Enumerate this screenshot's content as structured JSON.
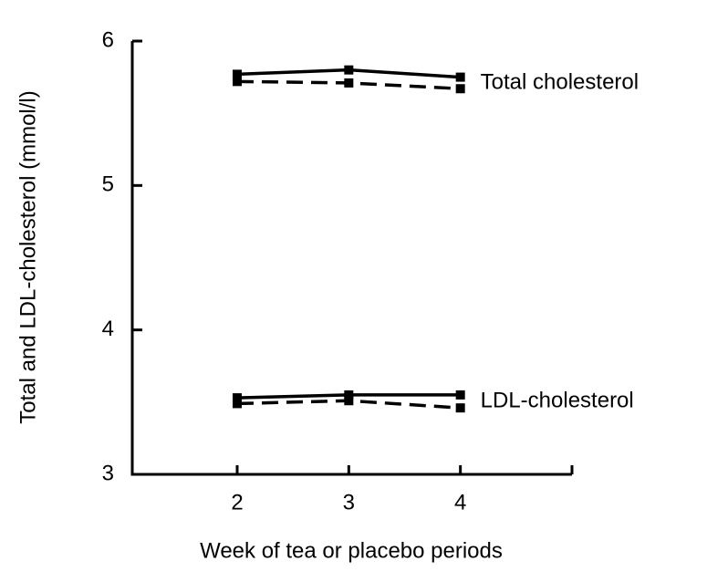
{
  "chart_data": {
    "type": "line",
    "x_label": "Week of tea or placebo periods",
    "y_label": "Total and LDL-cholesterol (mmol/l)",
    "x": [
      2,
      3,
      4
    ],
    "series": [
      {
        "color": "#000000",
        "dash": "solid",
        "values": [
          5.77,
          5.8,
          5.75
        ]
      },
      {
        "color": "#000000",
        "dash": "dashed",
        "values": [
          5.72,
          5.71,
          5.67
        ]
      },
      {
        "color": "#000000",
        "dash": "solid",
        "values": [
          3.53,
          3.55,
          3.55
        ]
      },
      {
        "color": "#000000",
        "dash": "dashed",
        "values": [
          3.49,
          3.51,
          3.46
        ]
      }
    ],
    "annotations": [
      "Total cholesterol",
      "LDL-cholesterol"
    ],
    "xlim": [
      1.06,
      5.0
    ],
    "xticks": [
      2,
      3,
      4
    ],
    "ylim": [
      3,
      6
    ],
    "yticks": [
      3,
      4,
      5,
      6
    ],
    "grid": false
  }
}
